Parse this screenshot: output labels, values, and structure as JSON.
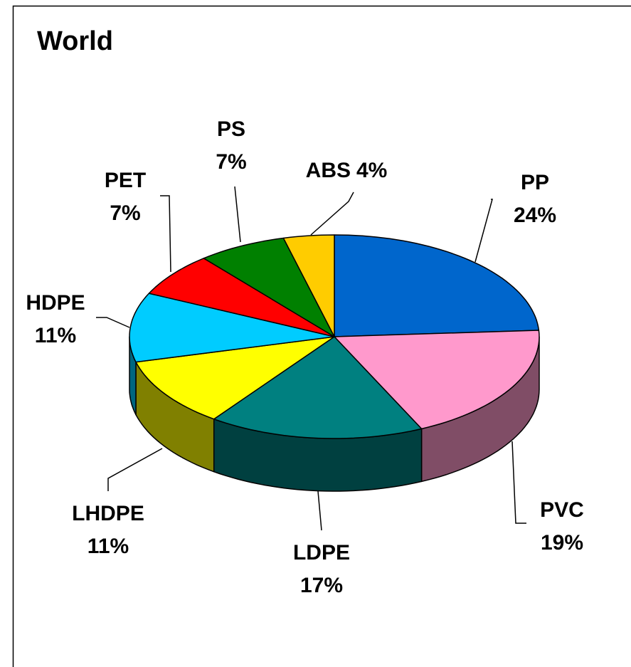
{
  "chart_data": {
    "type": "pie",
    "title": "World",
    "categories": [
      "PP",
      "PVC",
      "LDPE",
      "LHDPE",
      "HDPE",
      "PET",
      "PS",
      "ABS"
    ],
    "values": [
      24,
      19,
      17,
      11,
      11,
      7,
      7,
      4
    ],
    "value_labels": [
      "24%",
      "19%",
      "17%",
      "11%",
      "11%",
      "7%",
      "7%",
      "4%"
    ],
    "colors": [
      "#0066cc",
      "#ff99cc",
      "#008080",
      "#ffff00",
      "#00ccff",
      "#ff0000",
      "#008000",
      "#ffcc00"
    ],
    "three_d": true
  }
}
